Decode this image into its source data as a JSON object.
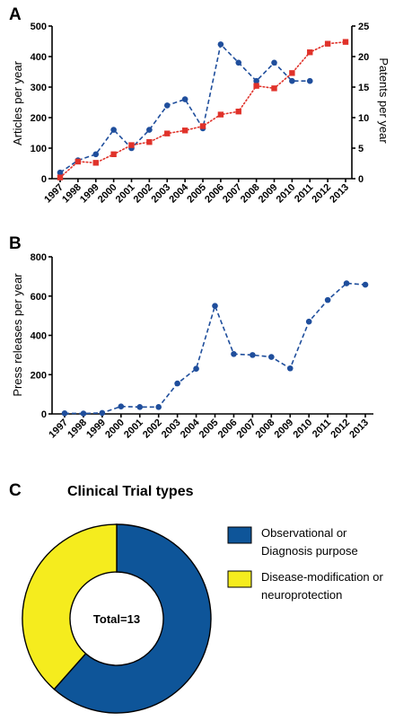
{
  "panels": {
    "a": "A",
    "b": "B",
    "c": "C"
  },
  "chart_data": [
    {
      "type": "line",
      "panel": "A",
      "x": [
        "1997",
        "1998",
        "1999",
        "2000",
        "2001",
        "2002",
        "2003",
        "2004",
        "2005",
        "2006",
        "2007",
        "2008",
        "2009",
        "2010",
        "2011",
        "2012",
        "2013"
      ],
      "ylabel": "Articles per year",
      "y2label": "Patents per year",
      "ylim": [
        0,
        500
      ],
      "yticks": [
        0,
        100,
        200,
        300,
        400,
        500
      ],
      "y2lim": [
        0,
        25
      ],
      "y2ticks": [
        0,
        5,
        10,
        15,
        20,
        25
      ],
      "series": [
        {
          "axis": "left",
          "color": "#1f4e9c",
          "marker": "circle",
          "style": "dashed",
          "values": [
            20,
            60,
            80,
            160,
            100,
            160,
            240,
            260,
            165,
            440,
            380,
            320,
            380,
            320,
            320,
            null,
            null
          ]
        },
        {
          "axis": "right",
          "color": "#e0322a",
          "marker": "square",
          "style": "dotted",
          "values": [
            0.2,
            2.8,
            2.6,
            4.0,
            5.5,
            6.0,
            7.4,
            7.9,
            8.6,
            10.5,
            11.0,
            15.2,
            14.8,
            17.3,
            20.7,
            22.1,
            22.4
          ]
        }
      ]
    },
    {
      "type": "line",
      "panel": "B",
      "x": [
        "1997",
        "1998",
        "1999",
        "2000",
        "2001",
        "2002",
        "2003",
        "2004",
        "2005",
        "2006",
        "2007",
        "2008",
        "2009",
        "2010",
        "2011",
        "2012",
        "2013"
      ],
      "ylabel": "Press releases per year",
      "ylim": [
        0,
        800
      ],
      "yticks": [
        0,
        200,
        400,
        600,
        800
      ],
      "series": [
        {
          "color": "#1f4e9c",
          "marker": "circle",
          "style": "dashed",
          "values": [
            3,
            2,
            5,
            38,
            35,
            35,
            155,
            230,
            550,
            305,
            300,
            290,
            232,
            470,
            580,
            665,
            658
          ]
        }
      ]
    },
    {
      "type": "pie",
      "panel": "C",
      "title": "Clinical Trial types",
      "center_label": "Total=13",
      "slices": [
        {
          "label": "Observational or Diagnosis purpose",
          "lines": [
            "Observational or",
            "Diagnosis purpose"
          ],
          "value": 8,
          "color": "#0e5599"
        },
        {
          "label": "Disease-modification or neuroprotection",
          "lines": [
            "Disease-modification or",
            "neuroprotection"
          ],
          "value": 5,
          "color": "#f5ec1e"
        }
      ]
    }
  ]
}
